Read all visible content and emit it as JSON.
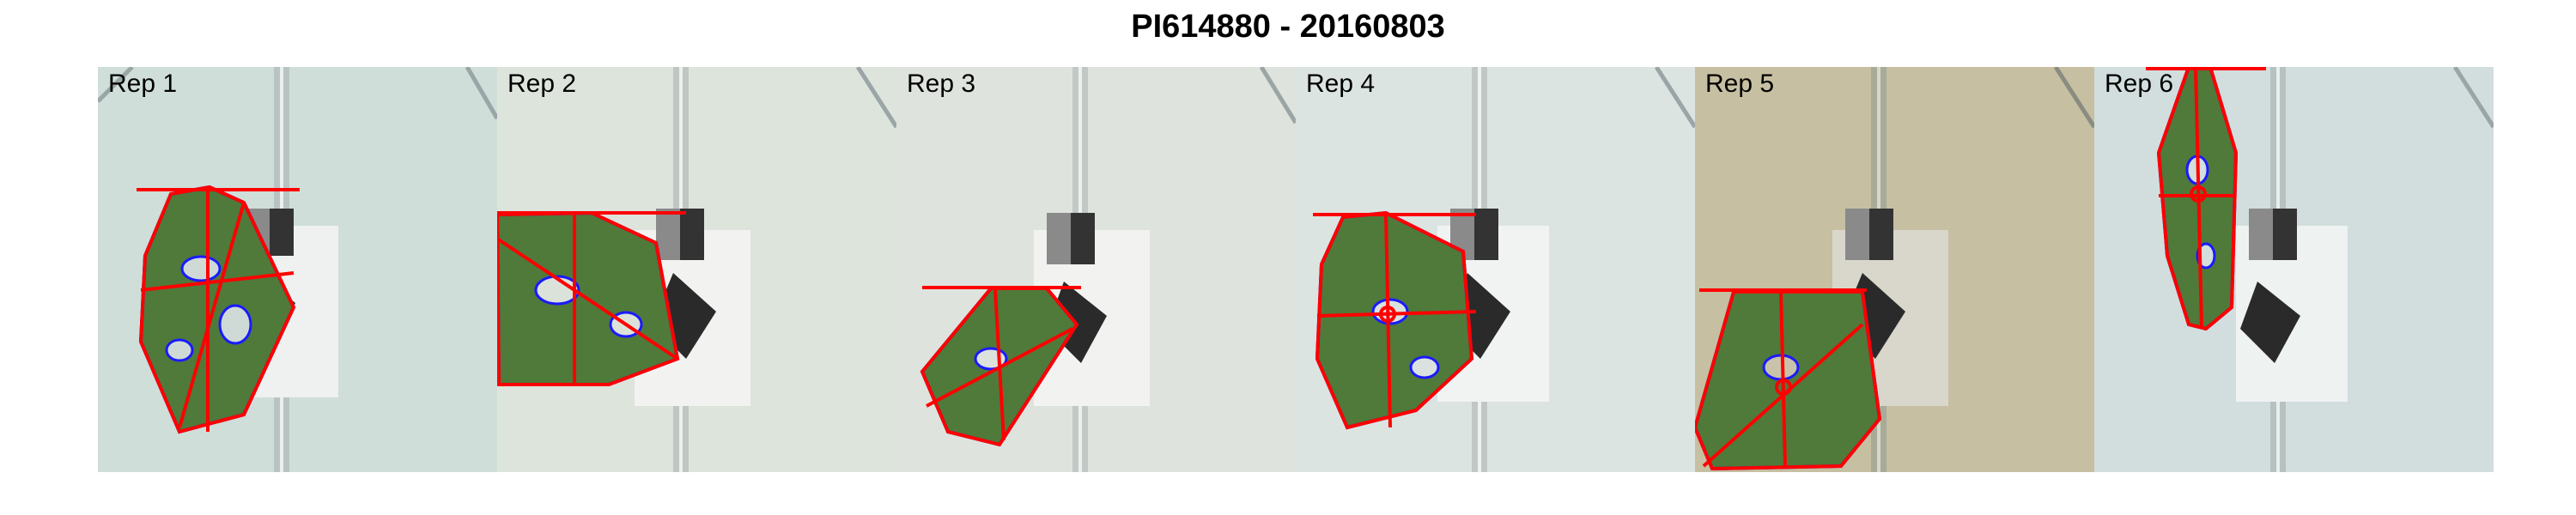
{
  "figure": {
    "title": "PI614880 - 20160803"
  },
  "colors": {
    "background": "#ffffff",
    "text": "#000000",
    "leaf_fill": "#4f7a3a",
    "leaf_outline": "#1a1aff",
    "measurement_lines": "#ff0000",
    "soil_tray": "#d9e4e1",
    "color_card_dark": "#333333",
    "color_card_gray": "#8a8a8a"
  },
  "panels": [
    {
      "label": "Rep 1"
    },
    {
      "label": "Rep 2"
    },
    {
      "label": "Rep 3"
    },
    {
      "label": "Rep 4"
    },
    {
      "label": "Rep 5"
    },
    {
      "label": "Rep 6"
    }
  ]
}
